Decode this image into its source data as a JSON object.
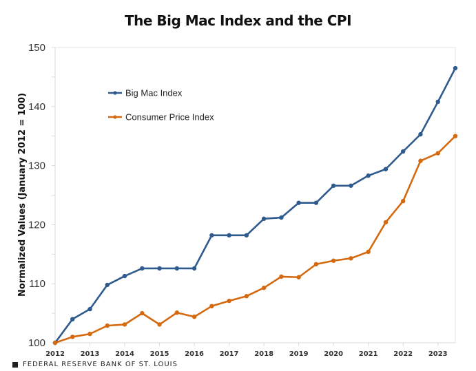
{
  "chart_data": {
    "type": "line",
    "title": "The Big Mac Index and the CPI",
    "xlabel": "",
    "ylabel": "Normalized Values (January 2012 = 100)",
    "ylim": [
      100,
      150
    ],
    "yticks": [
      100,
      110,
      120,
      130,
      140,
      150
    ],
    "x_tick_labels": [
      "2012",
      "2013",
      "2014",
      "2015",
      "2016",
      "2017",
      "2018",
      "2019",
      "2020",
      "2021",
      "2022",
      "2023"
    ],
    "x": [
      "2012-01",
      "2012-07",
      "2013-01",
      "2013-07",
      "2014-01",
      "2014-07",
      "2015-01",
      "2015-07",
      "2016-01",
      "2016-07",
      "2017-01",
      "2017-07",
      "2018-01",
      "2018-07",
      "2019-01",
      "2019-07",
      "2020-01",
      "2020-07",
      "2021-01",
      "2021-07",
      "2022-01",
      "2022-07",
      "2023-01",
      "2023-07"
    ],
    "grid": false,
    "legend_position": "top-left",
    "series": [
      {
        "name": "Big Mac Index",
        "color": "#2e5a8e",
        "values": [
          100,
          104.0,
          105.7,
          109.8,
          111.3,
          112.6,
          112.6,
          112.6,
          112.6,
          118.2,
          118.2,
          118.2,
          121.0,
          121.2,
          123.7,
          123.7,
          126.6,
          126.6,
          128.3,
          129.4,
          132.4,
          135.3,
          140.8,
          146.5
        ]
      },
      {
        "name": "Consumer Price Index",
        "color": "#d4690f",
        "values": [
          100,
          101.0,
          101.5,
          102.9,
          103.1,
          105.0,
          103.1,
          105.1,
          104.4,
          106.2,
          107.1,
          107.9,
          109.3,
          111.2,
          111.1,
          113.3,
          113.9,
          114.3,
          115.4,
          120.4,
          124.0,
          130.8,
          132.1,
          135.0
        ]
      }
    ]
  },
  "footer": {
    "source": "FEDERAL RESERVE BANK OF ST. LOUIS"
  }
}
